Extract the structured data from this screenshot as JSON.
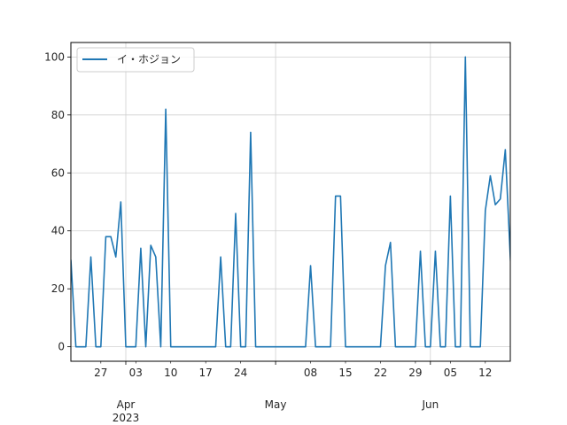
{
  "chart_data": {
    "type": "line",
    "title": "",
    "xlabel": "",
    "ylabel": "",
    "x_start": "2023-03-21",
    "x_end": "2023-06-17",
    "ylim": [
      -5,
      105
    ],
    "yticks": [
      0,
      20,
      40,
      60,
      80,
      100
    ],
    "grid": true,
    "legend_position": "upper-left",
    "xticks_minor": [
      {
        "date": "2023-03-27",
        "label": "27"
      },
      {
        "date": "2023-04-03",
        "label": "03"
      },
      {
        "date": "2023-04-10",
        "label": "10"
      },
      {
        "date": "2023-04-17",
        "label": "17"
      },
      {
        "date": "2023-04-24",
        "label": "24"
      },
      {
        "date": "2023-05-08",
        "label": "08"
      },
      {
        "date": "2023-05-15",
        "label": "15"
      },
      {
        "date": "2023-05-22",
        "label": "22"
      },
      {
        "date": "2023-05-29",
        "label": "29"
      },
      {
        "date": "2023-06-05",
        "label": "05"
      },
      {
        "date": "2023-06-12",
        "label": "12"
      }
    ],
    "xticks_major": [
      {
        "date": "2023-04-01",
        "label": "Apr\n2023"
      },
      {
        "date": "2023-05-01",
        "label": "May"
      },
      {
        "date": "2023-06-01",
        "label": "Jun"
      }
    ],
    "series": [
      {
        "name": "イ・ホジョン",
        "color": "#1f77b4",
        "points": [
          [
            "2023-03-21",
            30
          ],
          [
            "2023-03-22",
            0
          ],
          [
            "2023-03-23",
            0
          ],
          [
            "2023-03-24",
            0
          ],
          [
            "2023-03-25",
            31
          ],
          [
            "2023-03-26",
            0
          ],
          [
            "2023-03-27",
            0
          ],
          [
            "2023-03-28",
            38
          ],
          [
            "2023-03-29",
            38
          ],
          [
            "2023-03-30",
            31
          ],
          [
            "2023-03-31",
            50
          ],
          [
            "2023-04-01",
            0
          ],
          [
            "2023-04-02",
            0
          ],
          [
            "2023-04-03",
            0
          ],
          [
            "2023-04-04",
            34
          ],
          [
            "2023-04-05",
            0
          ],
          [
            "2023-04-06",
            35
          ],
          [
            "2023-04-07",
            31
          ],
          [
            "2023-04-08",
            0
          ],
          [
            "2023-04-09",
            82
          ],
          [
            "2023-04-10",
            0
          ],
          [
            "2023-04-11",
            0
          ],
          [
            "2023-04-12",
            0
          ],
          [
            "2023-04-13",
            0
          ],
          [
            "2023-04-14",
            0
          ],
          [
            "2023-04-15",
            0
          ],
          [
            "2023-04-16",
            0
          ],
          [
            "2023-04-17",
            0
          ],
          [
            "2023-04-18",
            0
          ],
          [
            "2023-04-19",
            0
          ],
          [
            "2023-04-20",
            31
          ],
          [
            "2023-04-21",
            0
          ],
          [
            "2023-04-22",
            0
          ],
          [
            "2023-04-23",
            46
          ],
          [
            "2023-04-24",
            0
          ],
          [
            "2023-04-25",
            0
          ],
          [
            "2023-04-26",
            74
          ],
          [
            "2023-04-27",
            0
          ],
          [
            "2023-04-28",
            0
          ],
          [
            "2023-04-29",
            0
          ],
          [
            "2023-04-30",
            0
          ],
          [
            "2023-05-01",
            0
          ],
          [
            "2023-05-02",
            0
          ],
          [
            "2023-05-03",
            0
          ],
          [
            "2023-05-04",
            0
          ],
          [
            "2023-05-05",
            0
          ],
          [
            "2023-05-06",
            0
          ],
          [
            "2023-05-07",
            0
          ],
          [
            "2023-05-08",
            28
          ],
          [
            "2023-05-09",
            0
          ],
          [
            "2023-05-10",
            0
          ],
          [
            "2023-05-11",
            0
          ],
          [
            "2023-05-12",
            0
          ],
          [
            "2023-05-13",
            52
          ],
          [
            "2023-05-14",
            52
          ],
          [
            "2023-05-15",
            0
          ],
          [
            "2023-05-16",
            0
          ],
          [
            "2023-05-17",
            0
          ],
          [
            "2023-05-18",
            0
          ],
          [
            "2023-05-19",
            0
          ],
          [
            "2023-05-20",
            0
          ],
          [
            "2023-05-21",
            0
          ],
          [
            "2023-05-22",
            0
          ],
          [
            "2023-05-23",
            28
          ],
          [
            "2023-05-24",
            36
          ],
          [
            "2023-05-25",
            0
          ],
          [
            "2023-05-26",
            0
          ],
          [
            "2023-05-27",
            0
          ],
          [
            "2023-05-28",
            0
          ],
          [
            "2023-05-29",
            0
          ],
          [
            "2023-05-30",
            33
          ],
          [
            "2023-05-31",
            0
          ],
          [
            "2023-06-01",
            0
          ],
          [
            "2023-06-02",
            33
          ],
          [
            "2023-06-03",
            0
          ],
          [
            "2023-06-04",
            0
          ],
          [
            "2023-06-05",
            52
          ],
          [
            "2023-06-06",
            0
          ],
          [
            "2023-06-07",
            0
          ],
          [
            "2023-06-08",
            100
          ],
          [
            "2023-06-09",
            0
          ],
          [
            "2023-06-10",
            0
          ],
          [
            "2023-06-11",
            0
          ],
          [
            "2023-06-12",
            47
          ],
          [
            "2023-06-13",
            59
          ],
          [
            "2023-06-14",
            49
          ],
          [
            "2023-06-15",
            51
          ],
          [
            "2023-06-16",
            68
          ],
          [
            "2023-06-17",
            31
          ],
          [
            "2023-06-18",
            0
          ]
        ]
      }
    ]
  }
}
